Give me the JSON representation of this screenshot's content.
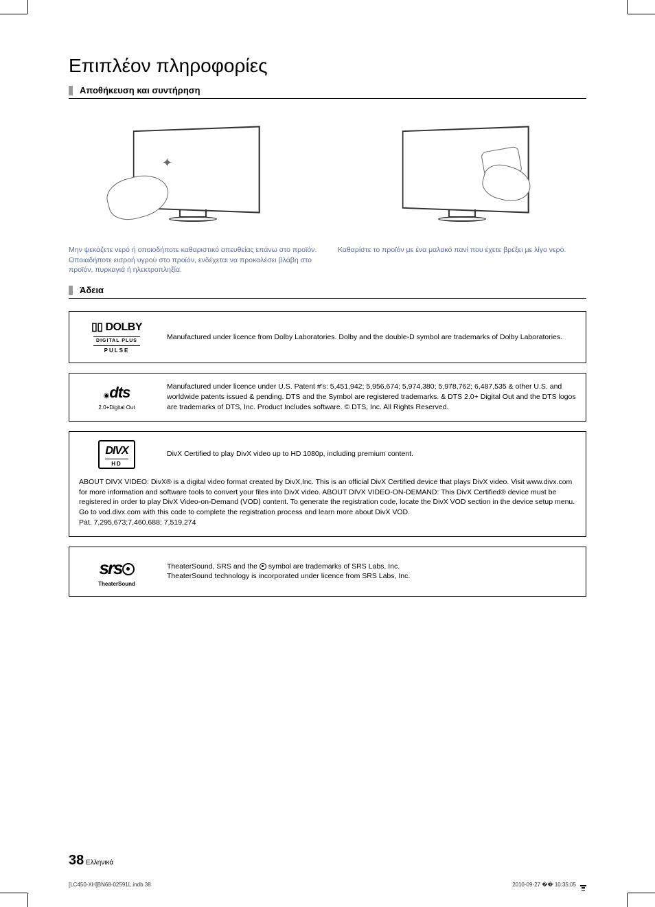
{
  "heading": "Επιπλέον πληροφορίες",
  "sections": {
    "storage": {
      "title": "Αποθήκευση και συντήρηση",
      "caption_left": "Μην ψεκάζετε νερό ή οποιοδήποτε καθαριστικό απευθείας επάνω στο προϊόν. Οποιαδήποτε εισροή υγρού στο προϊόν, ενδέχεται να προκαλέσει βλάβη στο προϊόν, πυρκαγιά ή ηλεκτροπληξία.",
      "caption_right": "Καθαρίστε το προϊόν με ένα μαλακό πανί που έχετε βρέξει με λίγο νερό."
    },
    "license": {
      "title": "Άδεια",
      "dolby": {
        "logo_top": "DOLBY",
        "logo_mid": "DIGITAL PLUS",
        "logo_bot": "PULSE",
        "text": "Manufactured under licence from Dolby Laboratories. Dolby and the double-D symbol are trademarks of Dolby Laboratories."
      },
      "dts": {
        "logo_main": "dts",
        "logo_sub": "2.0+Digital Out",
        "text": "Manufactured under licence under U.S. Patent #'s: 5,451,942; 5,956,674; 5,974,380; 5,978,762; 6,487,535 & other U.S. and worldwide patents issued & pending. DTS and the Symbol are registered trademarks. & DTS 2.0+ Digital Out and the DTS logos are trademarks of DTS, Inc. Product Includes software. © DTS, Inc. All Rights Reserved."
      },
      "divx": {
        "logo_main": "DIVX",
        "logo_sub": "HD",
        "text_main": "DivX Certified to play DivX video up to HD 1080p, including premium content.",
        "text_about": "ABOUT DIVX VIDEO: DivX® is a digital video format created by DivX,Inc. This is an official DivX Certified device that plays DivX video. Visit www.divx.com for more information and software tools to convert your files into DivX video. ABOUT DIVX VIDEO-ON-DEMAND: This DivX Certified® device must be registered in order to play DivX Video-on-Demand (VOD) content. To generate the registration code, locate the DivX VOD section in the device setup menu.\nGo to vod.divx.com with this code to complete the registration process and learn more about DivX VOD.\nPat. 7,295,673;7,460,688; 7,519,274"
      },
      "srs": {
        "logo_main": "srs",
        "logo_sub": "TheaterSound",
        "text_line1_a": "TheaterSound, SRS and the ",
        "text_line1_b": " symbol are trademarks of SRS Labs, Inc.",
        "text_line2": "TheaterSound technology is incorporated under licence from SRS Labs, Inc."
      }
    }
  },
  "page_number": "38",
  "page_lang": "Ελληνικά",
  "footer_left": "[LC450-XH]BN68-02591L.indb   38",
  "footer_right": "2010-09-27   �� 10:35:05",
  "colors": {
    "caption": "#5a6a9a",
    "section_bar": "#9a9a9a"
  }
}
